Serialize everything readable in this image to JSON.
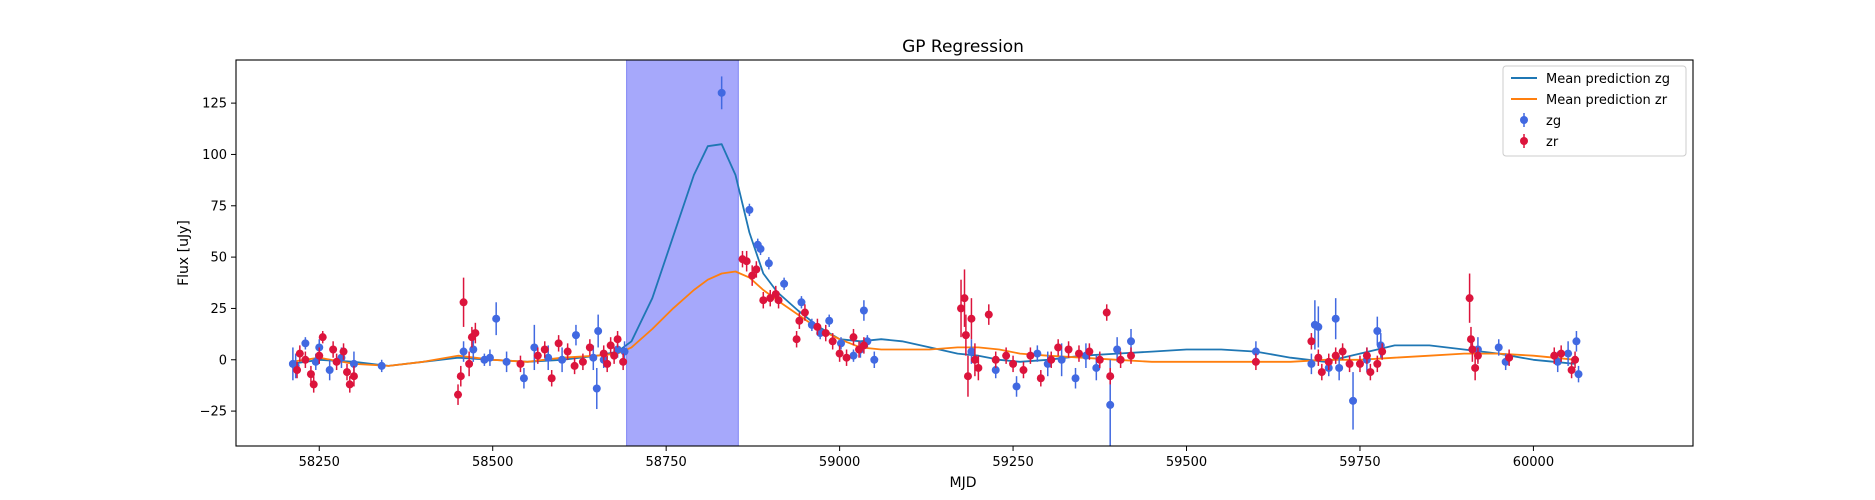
{
  "chart_data": {
    "type": "scatter",
    "title": "GP Regression",
    "xlabel": "MJD",
    "ylabel": "Flux [uJy]",
    "xlim": [
      58130,
      60230
    ],
    "ylim": [
      -42,
      146
    ],
    "xticks": [
      58250,
      58500,
      58750,
      59000,
      59250,
      59500,
      59750,
      60000
    ],
    "yticks": [
      -25,
      0,
      25,
      50,
      75,
      100,
      125
    ],
    "grid": false,
    "legend_position": "top-right",
    "shaded_region": {
      "x0": 58693,
      "x1": 58854,
      "color": "#a6a8fb"
    },
    "colors": {
      "zg_line": "#1f77b4",
      "zr_line": "#ff7f0e",
      "zg_points": "#4169e1",
      "zr_points": "#dc143c"
    },
    "series": [
      {
        "name": "Mean prediction zg",
        "kind": "line",
        "x": [
          58210,
          58250,
          58300,
          58350,
          58400,
          58450,
          58500,
          58550,
          58600,
          58650,
          58680,
          58700,
          58730,
          58760,
          58790,
          58810,
          58830,
          58850,
          58870,
          58890,
          58910,
          58940,
          58970,
          59000,
          59030,
          59060,
          59090,
          59130,
          59170,
          59200,
          59230,
          59260,
          59300,
          59350,
          59400,
          59450,
          59500,
          59550,
          59600,
          59650,
          59700,
          59750,
          59800,
          59850,
          59900,
          59950,
          60000,
          60030,
          60060
        ],
        "y": [
          -2,
          0,
          -1,
          -3,
          -1,
          1,
          0,
          -1,
          0,
          2,
          4,
          9,
          30,
          60,
          90,
          104,
          105,
          90,
          62,
          42,
          33,
          24,
          16,
          10,
          9,
          10,
          9,
          6,
          3,
          2,
          0,
          -1,
          0,
          2,
          3,
          4,
          5,
          5,
          4,
          1,
          -1,
          3,
          7,
          7,
          5,
          3,
          0,
          -1,
          -2
        ]
      },
      {
        "name": "Mean prediction zr",
        "kind": "line",
        "x": [
          58210,
          58250,
          58300,
          58350,
          58400,
          58450,
          58500,
          58550,
          58600,
          58650,
          58680,
          58700,
          58730,
          58760,
          58790,
          58810,
          58830,
          58850,
          58870,
          58890,
          58910,
          58940,
          58970,
          59000,
          59030,
          59060,
          59090,
          59130,
          59170,
          59200,
          59230,
          59260,
          59300,
          59350,
          59400,
          59450,
          59500,
          59550,
          59600,
          59650,
          59700,
          59750,
          59800,
          59850,
          59900,
          59950,
          60000,
          60030,
          60060
        ],
        "y": [
          -1,
          1,
          -2,
          -3,
          -1,
          2,
          0,
          -1,
          1,
          2,
          3,
          6,
          15,
          25,
          34,
          39,
          42,
          43,
          40,
          34,
          29,
          22,
          15,
          10,
          6,
          5,
          5,
          5,
          6,
          6,
          5,
          3,
          2,
          1,
          0,
          -1,
          -1,
          -1,
          -1,
          -1,
          0,
          0,
          1,
          2,
          3,
          3,
          2,
          1,
          0
        ]
      },
      {
        "name": "zg",
        "kind": "points",
        "points": [
          [
            58212,
            -2,
            8
          ],
          [
            58216,
            -3,
            6
          ],
          [
            58230,
            8,
            3
          ],
          [
            58245,
            -1,
            4
          ],
          [
            58250,
            6,
            4
          ],
          [
            58265,
            -5,
            5
          ],
          [
            58282,
            1,
            5
          ],
          [
            58300,
            -2,
            6
          ],
          [
            58340,
            -3,
            3
          ],
          [
            58458,
            4,
            5
          ],
          [
            58472,
            5,
            6
          ],
          [
            58488,
            0,
            3
          ],
          [
            58496,
            1,
            4
          ],
          [
            58505,
            20,
            8
          ],
          [
            58520,
            -1,
            5
          ],
          [
            58545,
            -9,
            5
          ],
          [
            58560,
            6,
            11
          ],
          [
            58580,
            1,
            6
          ],
          [
            58600,
            0,
            6
          ],
          [
            58620,
            12,
            5
          ],
          [
            58645,
            1,
            6
          ],
          [
            58650,
            -14,
            10
          ],
          [
            58652,
            14,
            8
          ],
          [
            58660,
            0,
            4
          ],
          [
            58680,
            5,
            4
          ],
          [
            58690,
            4,
            5
          ],
          [
            58830,
            130,
            8
          ],
          [
            58870,
            73,
            3
          ],
          [
            58882,
            56,
            3
          ],
          [
            58886,
            54,
            3
          ],
          [
            58898,
            47,
            3
          ],
          [
            58920,
            37,
            3
          ],
          [
            58945,
            28,
            3
          ],
          [
            58960,
            17,
            3
          ],
          [
            58972,
            13,
            3
          ],
          [
            58985,
            19,
            3
          ],
          [
            59002,
            8,
            3
          ],
          [
            59020,
            2,
            3
          ],
          [
            59030,
            5,
            4
          ],
          [
            59035,
            24,
            5
          ],
          [
            59040,
            9,
            3
          ],
          [
            59050,
            0,
            4
          ],
          [
            59190,
            4,
            6
          ],
          [
            59225,
            -5,
            4
          ],
          [
            59255,
            -13,
            5
          ],
          [
            59285,
            3,
            4
          ],
          [
            59300,
            -2,
            6
          ],
          [
            59320,
            0,
            8
          ],
          [
            59340,
            -9,
            5
          ],
          [
            59355,
            2,
            6
          ],
          [
            59370,
            -4,
            6
          ],
          [
            59390,
            -22,
            22
          ],
          [
            59400,
            5,
            6
          ],
          [
            59420,
            9,
            6
          ],
          [
            59600,
            4,
            5
          ],
          [
            59680,
            -2,
            5
          ],
          [
            59685,
            17,
            12
          ],
          [
            59690,
            16,
            10
          ],
          [
            59705,
            -4,
            4
          ],
          [
            59715,
            20,
            10
          ],
          [
            59720,
            -4,
            6
          ],
          [
            59740,
            -20,
            14
          ],
          [
            59760,
            0,
            6
          ],
          [
            59775,
            14,
            7
          ],
          [
            59780,
            7,
            6
          ],
          [
            59920,
            5,
            6
          ],
          [
            59950,
            6,
            4
          ],
          [
            59960,
            -1,
            4
          ],
          [
            60035,
            -1,
            5
          ],
          [
            60050,
            3,
            6
          ],
          [
            60062,
            9,
            5
          ],
          [
            60065,
            -7,
            4
          ]
        ]
      },
      {
        "name": "zr",
        "kind": "points",
        "points": [
          [
            58218,
            -5,
            4
          ],
          [
            58222,
            3,
            4
          ],
          [
            58230,
            0,
            4
          ],
          [
            58238,
            -7,
            4
          ],
          [
            58242,
            -12,
            4
          ],
          [
            58250,
            2,
            4
          ],
          [
            58255,
            11,
            3
          ],
          [
            58270,
            5,
            4
          ],
          [
            58275,
            -1,
            4
          ],
          [
            58285,
            4,
            4
          ],
          [
            58290,
            -6,
            4
          ],
          [
            58294,
            -12,
            4
          ],
          [
            58300,
            -8,
            5
          ],
          [
            58450,
            -17,
            5
          ],
          [
            58454,
            -8,
            5
          ],
          [
            58458,
            28,
            12
          ],
          [
            58466,
            -2,
            6
          ],
          [
            58470,
            11,
            5
          ],
          [
            58475,
            13,
            5
          ],
          [
            58540,
            -2,
            4
          ],
          [
            58565,
            2,
            4
          ],
          [
            58575,
            5,
            4
          ],
          [
            58585,
            -9,
            4
          ],
          [
            58595,
            8,
            4
          ],
          [
            58608,
            4,
            4
          ],
          [
            58618,
            -3,
            4
          ],
          [
            58630,
            -1,
            4
          ],
          [
            58640,
            6,
            4
          ],
          [
            58660,
            3,
            4
          ],
          [
            58665,
            -2,
            4
          ],
          [
            58670,
            7,
            4
          ],
          [
            58675,
            2,
            4
          ],
          [
            58680,
            10,
            4
          ],
          [
            58688,
            -1,
            4
          ],
          [
            58860,
            49,
            4
          ],
          [
            58866,
            48,
            5
          ],
          [
            58874,
            41,
            5
          ],
          [
            58880,
            44,
            4
          ],
          [
            58890,
            29,
            4
          ],
          [
            58900,
            30,
            4
          ],
          [
            58908,
            32,
            4
          ],
          [
            58912,
            29,
            4
          ],
          [
            58938,
            10,
            4
          ],
          [
            58942,
            19,
            4
          ],
          [
            58950,
            23,
            4
          ],
          [
            58968,
            16,
            4
          ],
          [
            58980,
            13,
            4
          ],
          [
            58990,
            9,
            4
          ],
          [
            59000,
            3,
            4
          ],
          [
            59010,
            1,
            4
          ],
          [
            59020,
            11,
            4
          ],
          [
            59028,
            5,
            4
          ],
          [
            59035,
            7,
            4
          ],
          [
            59175,
            25,
            14
          ],
          [
            59180,
            30,
            14
          ],
          [
            59182,
            12,
            10
          ],
          [
            59185,
            -8,
            10
          ],
          [
            59190,
            20,
            10
          ],
          [
            59195,
            0,
            8
          ],
          [
            59200,
            -4,
            6
          ],
          [
            59215,
            22,
            5
          ],
          [
            59225,
            0,
            4
          ],
          [
            59240,
            2,
            4
          ],
          [
            59250,
            -2,
            4
          ],
          [
            59265,
            -5,
            4
          ],
          [
            59275,
            2,
            4
          ],
          [
            59290,
            -9,
            4
          ],
          [
            59305,
            0,
            4
          ],
          [
            59315,
            6,
            4
          ],
          [
            59330,
            5,
            4
          ],
          [
            59345,
            3,
            4
          ],
          [
            59360,
            4,
            4
          ],
          [
            59375,
            0,
            4
          ],
          [
            59385,
            23,
            4
          ],
          [
            59390,
            -8,
            4
          ],
          [
            59405,
            0,
            4
          ],
          [
            59420,
            2,
            4
          ],
          [
            59600,
            -1,
            4
          ],
          [
            59680,
            9,
            4
          ],
          [
            59690,
            1,
            4
          ],
          [
            59695,
            -6,
            4
          ],
          [
            59705,
            -1,
            4
          ],
          [
            59715,
            2,
            4
          ],
          [
            59725,
            4,
            4
          ],
          [
            59735,
            -2,
            4
          ],
          [
            59750,
            -2,
            4
          ],
          [
            59760,
            2,
            4
          ],
          [
            59765,
            -6,
            4
          ],
          [
            59775,
            -2,
            4
          ],
          [
            59782,
            4,
            4
          ],
          [
            59908,
            30,
            12
          ],
          [
            59910,
            10,
            6
          ],
          [
            59912,
            5,
            6
          ],
          [
            59916,
            -4,
            6
          ],
          [
            59920,
            2,
            4
          ],
          [
            59965,
            1,
            4
          ],
          [
            60030,
            2,
            4
          ],
          [
            60040,
            3,
            4
          ],
          [
            60055,
            -5,
            4
          ],
          [
            60060,
            0,
            4
          ]
        ]
      }
    ]
  }
}
